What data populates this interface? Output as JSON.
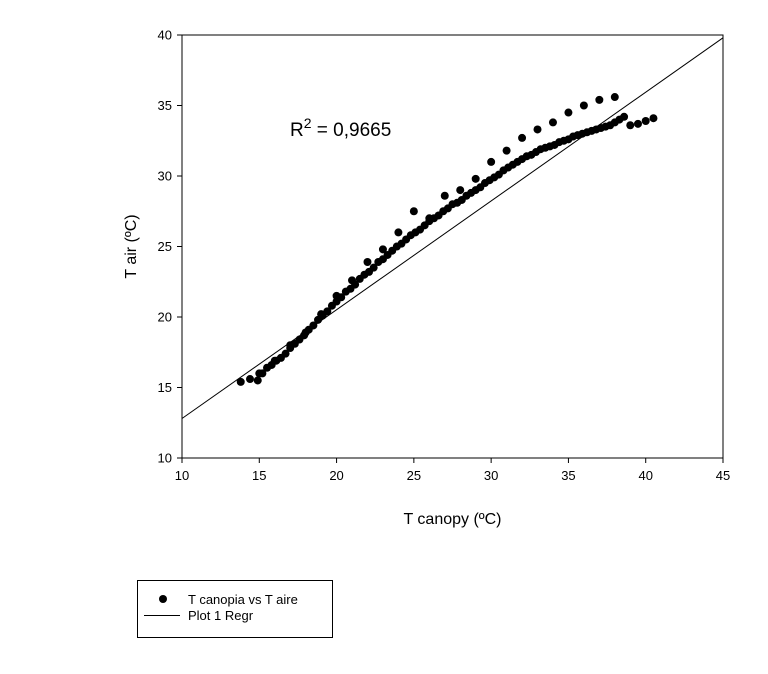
{
  "chart_data": {
    "type": "scatter",
    "xlabel": "T canopy (ºC)",
    "ylabel": "T air (ºC)",
    "xlim": [
      10,
      45
    ],
    "ylim": [
      10,
      40
    ],
    "xticks": [
      10,
      15,
      20,
      25,
      30,
      35,
      40,
      45
    ],
    "yticks": [
      10,
      15,
      20,
      25,
      30,
      35,
      40
    ],
    "annotation": {
      "base": "R",
      "sup": "2",
      "rest": " = 0,9665"
    },
    "grid": false,
    "legend_placement": "below-left",
    "series": [
      {
        "name": "T canopia vs T aire",
        "marker": "filled-circle",
        "color": "#000000",
        "x": [
          13.8,
          14.4,
          14.9,
          15.2,
          15.5,
          15.8,
          16.1,
          16.4,
          16.7,
          17.0,
          17.3,
          17.6,
          17.9,
          18.2,
          18.5,
          18.8,
          19.1,
          19.4,
          19.7,
          20.0,
          20.3,
          20.6,
          20.9,
          21.2,
          21.5,
          21.8,
          22.1,
          22.4,
          22.7,
          23.0,
          23.3,
          23.6,
          23.9,
          24.2,
          24.5,
          24.8,
          25.1,
          25.4,
          25.7,
          26.0,
          26.3,
          26.6,
          26.9,
          27.2,
          27.5,
          27.8,
          28.1,
          28.4,
          28.7,
          29.0,
          29.3,
          29.6,
          29.9,
          30.2,
          30.5,
          30.8,
          31.1,
          31.4,
          31.7,
          32.0,
          32.3,
          32.6,
          32.9,
          33.2,
          33.5,
          33.8,
          34.1,
          34.4,
          34.7,
          35.0,
          35.3,
          35.6,
          35.9,
          36.2,
          36.5,
          36.8,
          37.1,
          37.4,
          37.7,
          38.0,
          38.3,
          38.6,
          39.0,
          39.5,
          40.0,
          40.5,
          15.0,
          16.0,
          17.0,
          18.0,
          19.0,
          20.0,
          21.0,
          22.0,
          23.0,
          24.0,
          25.0,
          26.0,
          27.0,
          28.0,
          29.0,
          30.0,
          31.0,
          32.0,
          33.0,
          34.0,
          35.0,
          36.0,
          37.0,
          38.0
        ],
        "y": [
          15.4,
          15.6,
          15.5,
          16.0,
          16.4,
          16.6,
          16.9,
          17.1,
          17.4,
          17.8,
          18.1,
          18.4,
          18.7,
          19.1,
          19.4,
          19.8,
          20.1,
          20.4,
          20.8,
          21.1,
          21.4,
          21.8,
          22.0,
          22.3,
          22.7,
          23.0,
          23.2,
          23.5,
          23.9,
          24.1,
          24.4,
          24.7,
          25.0,
          25.2,
          25.5,
          25.8,
          26.0,
          26.2,
          26.5,
          26.8,
          27.0,
          27.2,
          27.5,
          27.7,
          28.0,
          28.1,
          28.3,
          28.6,
          28.8,
          29.0,
          29.2,
          29.5,
          29.7,
          29.9,
          30.1,
          30.4,
          30.6,
          30.8,
          31.0,
          31.2,
          31.4,
          31.5,
          31.7,
          31.9,
          32.0,
          32.1,
          32.2,
          32.4,
          32.5,
          32.6,
          32.8,
          32.9,
          33.0,
          33.1,
          33.2,
          33.3,
          33.4,
          33.5,
          33.6,
          33.8,
          34.0,
          34.2,
          33.6,
          33.7,
          33.9,
          34.1,
          16.0,
          16.9,
          18.0,
          18.9,
          20.2,
          21.5,
          22.6,
          23.9,
          24.8,
          26.0,
          27.5,
          27.0,
          28.6,
          29.0,
          29.8,
          31.0,
          31.8,
          32.7,
          33.3,
          33.8,
          34.5,
          35.0,
          35.4,
          35.6
        ]
      },
      {
        "name": "Plot 1 Regr",
        "type": "line",
        "color": "#000000",
        "x": [
          10,
          45
        ],
        "y": [
          12.8,
          39.8
        ]
      }
    ]
  }
}
